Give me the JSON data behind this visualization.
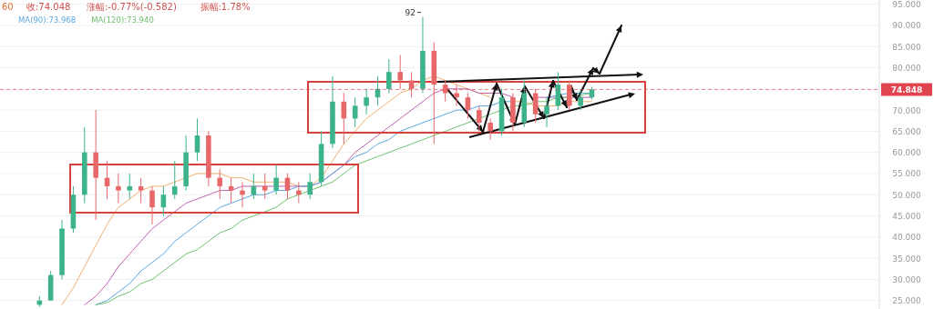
{
  "chart_data": {
    "type": "candlestick",
    "categories": [
      null,
      null,
      null,
      null,
      null,
      null,
      null,
      null,
      null,
      null,
      null,
      null,
      null,
      null,
      null,
      null,
      null,
      null,
      null,
      null,
      null,
      null,
      null,
      null,
      null,
      null,
      null,
      null,
      null,
      null,
      null,
      null,
      null,
      null,
      null,
      null,
      null,
      null,
      null,
      null,
      null,
      null,
      null,
      null,
      null,
      null,
      null,
      null,
      null,
      null,
      null,
      null,
      null,
      null,
      null,
      null,
      null,
      null,
      null,
      null,
      null,
      null,
      null,
      null,
      null,
      null,
      null,
      null,
      null,
      null,
      null,
      null,
      null,
      null,
      null,
      null,
      null,
      null
    ],
    "ohlc": [
      null,
      null,
      null,
      [
        24,
        26,
        23.5,
        25
      ],
      [
        25,
        32,
        25,
        31
      ],
      [
        31,
        44,
        30,
        42
      ],
      [
        42,
        52,
        41,
        50
      ],
      [
        50,
        66,
        48,
        60
      ],
      [
        60,
        70,
        44,
        54
      ],
      [
        54,
        58,
        49,
        52
      ],
      [
        52,
        55,
        48,
        51
      ],
      [
        51,
        55,
        49,
        52
      ],
      [
        52,
        54,
        48,
        51
      ],
      [
        51,
        52,
        43,
        47
      ],
      [
        47,
        52,
        45,
        50
      ],
      [
        50,
        58,
        49,
        52
      ],
      [
        52,
        64,
        51,
        60
      ],
      [
        60,
        68,
        58,
        64
      ],
      [
        64,
        65,
        52,
        54
      ],
      [
        54,
        56,
        49,
        52
      ],
      [
        52,
        54,
        48,
        51
      ],
      [
        51,
        53,
        47,
        50
      ],
      [
        50,
        55,
        49,
        52
      ],
      [
        52,
        55,
        49,
        51
      ],
      [
        51,
        57,
        50,
        54
      ],
      [
        54,
        55,
        49,
        51
      ],
      [
        51,
        53,
        48,
        50
      ],
      [
        50,
        55,
        49,
        53
      ],
      [
        53,
        65,
        52,
        62
      ],
      [
        62,
        78,
        61,
        72
      ],
      [
        72,
        74,
        62,
        68
      ],
      [
        68,
        73,
        66,
        71
      ],
      [
        71,
        75,
        69,
        73
      ],
      [
        73,
        78,
        71,
        75
      ],
      [
        75,
        82,
        74,
        79
      ],
      [
        79,
        83,
        75,
        77
      ],
      [
        77,
        79,
        73,
        75
      ],
      [
        75,
        92,
        74,
        84
      ],
      [
        84,
        86,
        62,
        76
      ],
      [
        76,
        77,
        72,
        74
      ],
      [
        74,
        76,
        71,
        73
      ],
      [
        73,
        74,
        68,
        70
      ],
      [
        70,
        71,
        65,
        67
      ],
      [
        67,
        68,
        63,
        65
      ],
      [
        65,
        75,
        64,
        73
      ],
      [
        73,
        74,
        65,
        67
      ],
      [
        67,
        77,
        66,
        74
      ],
      [
        74,
        75,
        67,
        69
      ],
      [
        69,
        73,
        66,
        71
      ],
      [
        71,
        79,
        70,
        76
      ],
      [
        76,
        77,
        70,
        71
      ],
      [
        71,
        75,
        70,
        73
      ],
      [
        73,
        75.5,
        72.5,
        74.848
      ],
      null,
      null,
      null,
      null,
      null,
      null,
      null,
      null,
      null,
      null,
      null,
      null,
      null,
      null,
      null,
      null,
      null,
      null,
      null,
      null,
      null,
      null,
      null,
      null,
      null
    ],
    "series": [
      {
        "type": "line",
        "color": "#f0b070",
        "values": [
          null,
          null,
          null,
          null,
          null,
          24,
          28,
          33,
          38,
          43,
          47,
          49,
          51,
          52,
          52,
          53,
          54,
          55,
          55,
          55,
          54,
          54,
          53,
          53,
          53,
          53,
          52,
          52,
          54,
          58,
          62,
          65,
          68,
          70,
          72,
          74,
          75,
          77,
          78,
          77,
          76,
          75,
          74,
          73,
          null,
          72,
          72,
          71,
          71,
          71,
          72,
          72,
          72,
          null,
          null,
          null,
          null,
          null,
          null,
          null,
          null,
          null,
          null,
          null,
          null,
          null,
          null,
          null,
          null,
          null,
          null,
          null,
          null,
          null,
          null,
          null,
          null,
          null
        ]
      },
      {
        "type": "line",
        "color": "#c060b0",
        "values": [
          null,
          null,
          null,
          null,
          null,
          null,
          null,
          24,
          26,
          29,
          33,
          36,
          39,
          42,
          44,
          46,
          48,
          49,
          50,
          51,
          51,
          52,
          52,
          52,
          52,
          52,
          52,
          52,
          53,
          55,
          57,
          60,
          62,
          64,
          66,
          68,
          70,
          72,
          74,
          75,
          75,
          75,
          74,
          74,
          74,
          73,
          null,
          73,
          73,
          73,
          73,
          73,
          73,
          null,
          null,
          null,
          null,
          null,
          null,
          null,
          null,
          null,
          null,
          null,
          null,
          null,
          null,
          null,
          null,
          null,
          null,
          null,
          null,
          null,
          null,
          null,
          null,
          null
        ]
      },
      {
        "type": "line",
        "name": "MA(90):73.968",
        "color": "#5aa8e0",
        "values": [
          null,
          null,
          null,
          null,
          null,
          null,
          null,
          null,
          24,
          25,
          27,
          29,
          32,
          34,
          36,
          39,
          41,
          43,
          45,
          47,
          48,
          49,
          50,
          50,
          51,
          51,
          52,
          52,
          53,
          55,
          57,
          59,
          60,
          62,
          63,
          65,
          66,
          67,
          68,
          69,
          70,
          70,
          71,
          71,
          72,
          72,
          null,
          null,
          73,
          73.5,
          74,
          74,
          74,
          null,
          null,
          null,
          null,
          null,
          null,
          null,
          null,
          null,
          null,
          null,
          null,
          null,
          null,
          null,
          null,
          null,
          null,
          null,
          null,
          null,
          null,
          null,
          null,
          null
        ]
      },
      {
        "type": "line",
        "name": "MA(120):73.940",
        "color": "#70c070",
        "values": [
          null,
          null,
          null,
          null,
          null,
          null,
          null,
          null,
          24,
          24.5,
          26,
          27,
          29,
          30,
          32,
          34,
          36,
          37,
          39,
          41,
          42,
          44,
          45,
          46,
          47,
          49,
          50,
          51,
          52,
          53,
          55,
          57,
          58,
          59,
          60,
          61,
          62,
          63,
          64,
          65,
          66,
          67,
          68,
          69,
          70,
          71,
          71,
          72,
          72,
          73,
          73,
          73.5,
          74,
          null,
          null,
          null,
          null,
          null,
          null,
          null,
          null,
          null,
          null,
          null,
          null,
          null,
          null,
          null,
          null,
          null,
          null,
          null,
          null,
          null,
          null,
          null,
          null,
          null
        ]
      }
    ],
    "ylim": [
      23,
      96
    ],
    "yticks": [
      {
        "value": 25,
        "label": "25.000"
      },
      {
        "value": 30,
        "label": "30.000"
      },
      {
        "value": 35,
        "label": "35.000"
      },
      {
        "value": 40,
        "label": "40.000"
      },
      {
        "value": 45,
        "label": "45.000"
      },
      {
        "value": 50,
        "label": "50.000"
      },
      {
        "value": 55,
        "label": "55.000"
      },
      {
        "value": 60,
        "label": "60.000"
      },
      {
        "value": 65,
        "label": "65.000"
      },
      {
        "value": 70,
        "label": "70.000"
      },
      {
        "value": 75,
        "label": null
      },
      {
        "value": 80,
        "label": "80.000"
      },
      {
        "value": 85,
        "label": "85.000"
      },
      {
        "value": 90,
        "label": "90.000"
      },
      {
        "value": 95,
        "label": "95.000"
      }
    ],
    "tick_labels": "y",
    "grid": "y",
    "legend": "top left",
    "ref_lines": [
      {
        "axis": "y",
        "value": 74.848,
        "label": "74.848",
        "color": "#e0454f",
        "line_style": "dashed"
      }
    ],
    "annotations": [
      "60",
      "收:74.048",
      "涨幅:-0.77%(-0.582)",
      "振幅:1.78%",
      "92"
    ]
  }
}
